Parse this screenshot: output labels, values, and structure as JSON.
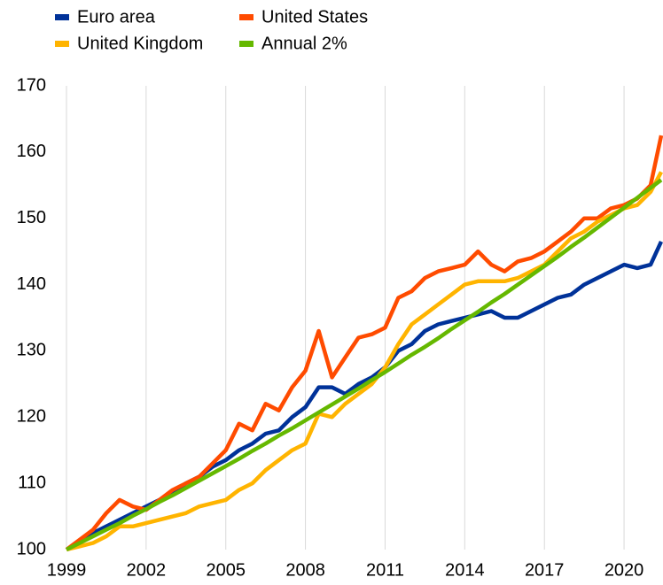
{
  "chart_data": {
    "type": "line",
    "x": [
      1999,
      1999.5,
      2000,
      2000.5,
      2001,
      2001.5,
      2002,
      2002.5,
      2003,
      2003.5,
      2004,
      2004.5,
      2005,
      2005.5,
      2006,
      2006.5,
      2007,
      2007.5,
      2008,
      2008.5,
      2009,
      2009.5,
      2010,
      2010.5,
      2011,
      2011.5,
      2012,
      2012.5,
      2013,
      2013.5,
      2014,
      2014.5,
      2015,
      2015.5,
      2016,
      2016.5,
      2017,
      2017.5,
      2018,
      2018.5,
      2019,
      2019.5,
      2020,
      2020.5,
      2021,
      2021.4
    ],
    "series": [
      {
        "name": "Euro area",
        "color": "#003299",
        "values": [
          100,
          101,
          102.5,
          103.5,
          104.5,
          105.5,
          106.5,
          107.5,
          108.5,
          110,
          111,
          112.5,
          113.5,
          115,
          116,
          117.5,
          118,
          120,
          121.5,
          124.5,
          124.5,
          123.5,
          125,
          126,
          127.5,
          130,
          131,
          133,
          134,
          134.5,
          135,
          135.5,
          136,
          135,
          135,
          136,
          137,
          138,
          138.5,
          140,
          141,
          142,
          143,
          142.5,
          143,
          146.5
        ]
      },
      {
        "name": "United States",
        "color": "#ff4b00",
        "values": [
          100,
          101.5,
          103,
          105.5,
          107.5,
          106.5,
          106,
          107.5,
          109,
          110,
          111,
          113,
          115,
          119,
          118,
          122,
          121,
          124.5,
          127,
          133,
          126,
          129,
          132,
          132.5,
          133.5,
          138,
          139,
          141,
          142,
          142.5,
          143,
          145,
          143,
          142,
          143.5,
          144,
          145,
          146.5,
          148,
          150,
          150,
          151.5,
          152,
          153,
          155,
          162.5
        ]
      },
      {
        "name": "United Kingdom",
        "color": "#ffb400",
        "values": [
          100,
          100.5,
          101,
          102,
          103.5,
          103.5,
          104,
          104.5,
          105,
          105.5,
          106.5,
          107,
          107.5,
          109,
          110,
          112,
          113.5,
          115,
          116,
          120.5,
          120,
          122,
          123.5,
          125,
          127.5,
          131,
          134,
          135.5,
          137,
          138.5,
          140,
          140.5,
          140.5,
          140.5,
          141,
          142,
          143,
          145,
          147,
          148,
          149.5,
          150.5,
          151.5,
          152,
          154,
          157
        ]
      },
      {
        "name": "Annual 2%",
        "color": "#65b800",
        "values": [
          100,
          101,
          102,
          103,
          104,
          105.1,
          106.1,
          107.2,
          108.2,
          109.3,
          110.4,
          111.5,
          112.6,
          113.7,
          114.9,
          116,
          117.2,
          118.3,
          119.5,
          120.7,
          121.9,
          123.1,
          124.3,
          125.6,
          126.8,
          128.1,
          129.4,
          130.6,
          131.9,
          133.3,
          134.6,
          135.9,
          137.3,
          138.6,
          140,
          141.4,
          142.8,
          144.2,
          145.7,
          147.1,
          148.6,
          150.1,
          151.6,
          153.1,
          154.6,
          155.8
        ]
      }
    ],
    "xlim": [
      1999,
      2021.4
    ],
    "xticks": [
      1999,
      2002,
      2005,
      2008,
      2011,
      2014,
      2017,
      2020
    ],
    "ylim": [
      100,
      170
    ],
    "yticks": [
      100,
      110,
      120,
      130,
      140,
      150,
      160,
      170
    ],
    "grid": true
  }
}
